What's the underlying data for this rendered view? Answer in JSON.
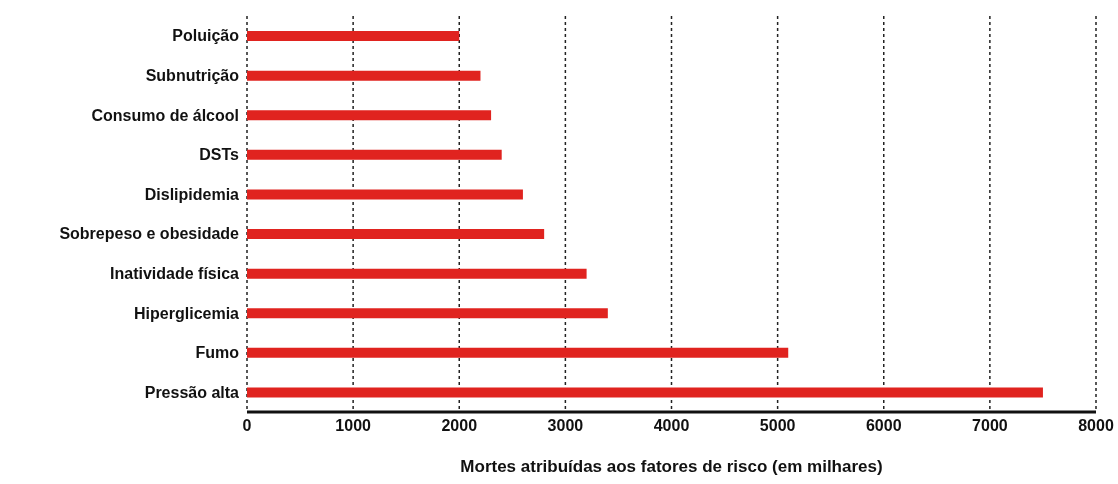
{
  "chart_data": {
    "type": "bar",
    "orientation": "horizontal",
    "xlabel": "Mortes atribuídas aos fatores de risco (em milhares)",
    "categories": [
      "Poluição",
      "Subnutrição",
      "Consumo de álcool",
      "DSTs",
      "Dislipidemia",
      "Sobrepeso e obesidade",
      "Inatividade física",
      "Hiperglicemia",
      "Fumo",
      "Pressão alta"
    ],
    "values": [
      2000,
      2200,
      2300,
      2400,
      2600,
      2800,
      3200,
      3400,
      5100,
      7500
    ],
    "color": "#e0231f",
    "xlim": [
      0,
      8000
    ],
    "xticks": [
      0,
      1000,
      2000,
      3000,
      4000,
      5000,
      6000,
      7000,
      8000
    ],
    "grid": "x"
  }
}
